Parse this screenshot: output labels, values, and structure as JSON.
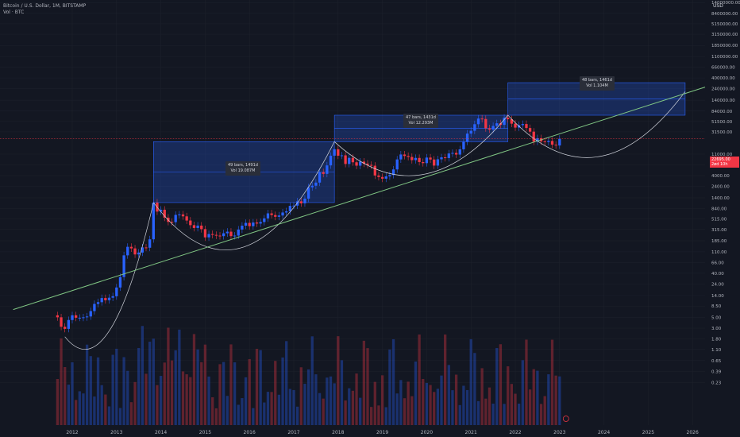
{
  "header": {
    "title": "Bitcoin / U.S. Dollar, 1M, BITSTAMP",
    "subtitle": "Vol · BTC",
    "currency": "USD"
  },
  "price_tag": {
    "value": "22695.00",
    "countdown": "2ød 10h"
  },
  "annotations": [
    {
      "bars": "49 bars, 1491d",
      "vol": "Vol 19.087M"
    },
    {
      "bars": "47 bars, 1431d",
      "vol": "Vol 12.293M"
    },
    {
      "bars": "48 bars, 1461d",
      "vol": "Vol 1.104M"
    }
  ],
  "colors": {
    "background": "#131722",
    "up": "#2962ff",
    "down": "#f23645",
    "trendline": "#81c784",
    "box": "#2962ff",
    "grid": "#1e222d",
    "text": "#b2b5be"
  },
  "chart_data": {
    "type": "candlestick",
    "scale": "log",
    "y_ticks": [
      "14000000.00",
      "8400000.00",
      "5150000.00",
      "3150000.00",
      "1850000.00",
      "1100000.00",
      "660000.00",
      "400000.00",
      "240000.00",
      "140000.00",
      "84000.00",
      "51500.00",
      "31500.00",
      "11000.00",
      "6600.00",
      "4000.00",
      "2400.00",
      "1400.00",
      "840.00",
      "515.00",
      "315.00",
      "185.00",
      "110.00",
      "66.00",
      "40.00",
      "24.00",
      "14.00",
      "8.50",
      "5.00",
      "3.00",
      "1.80",
      "1.10",
      "0.65",
      "0.39",
      "0.23"
    ],
    "x_ticks": [
      "2012",
      "2013",
      "2014",
      "2015",
      "2016",
      "2017",
      "2018",
      "2019",
      "2020",
      "2021",
      "2022",
      "2023",
      "2024",
      "2025",
      "2026"
    ],
    "closes": [
      {
        "date": "2011-09",
        "value": 5.0
      },
      {
        "date": "2011-10",
        "value": 3.2
      },
      {
        "date": "2011-11",
        "value": 2.9
      },
      {
        "date": "2011-12",
        "value": 4.4
      },
      {
        "date": "2012-01",
        "value": 5.5
      },
      {
        "date": "2012-02",
        "value": 4.9
      },
      {
        "date": "2012-03",
        "value": 4.9
      },
      {
        "date": "2012-04",
        "value": 5.0
      },
      {
        "date": "2012-05",
        "value": 5.2
      },
      {
        "date": "2012-06",
        "value": 6.7
      },
      {
        "date": "2012-07",
        "value": 9.4
      },
      {
        "date": "2012-08",
        "value": 10.2
      },
      {
        "date": "2012-09",
        "value": 12.4
      },
      {
        "date": "2012-10",
        "value": 11.2
      },
      {
        "date": "2012-11",
        "value": 12.6
      },
      {
        "date": "2012-12",
        "value": 13.5
      },
      {
        "date": "2013-01",
        "value": 20.4
      },
      {
        "date": "2013-02",
        "value": 33.4
      },
      {
        "date": "2013-03",
        "value": 93
      },
      {
        "date": "2013-04",
        "value": 139
      },
      {
        "date": "2013-05",
        "value": 129
      },
      {
        "date": "2013-06",
        "value": 97
      },
      {
        "date": "2013-07",
        "value": 106
      },
      {
        "date": "2013-08",
        "value": 135
      },
      {
        "date": "2013-09",
        "value": 133
      },
      {
        "date": "2013-10",
        "value": 198
      },
      {
        "date": "2013-11",
        "value": 1120
      },
      {
        "date": "2013-12",
        "value": 732
      },
      {
        "date": "2014-01",
        "value": 800
      },
      {
        "date": "2014-02",
        "value": 550
      },
      {
        "date": "2014-03",
        "value": 450
      },
      {
        "date": "2014-04",
        "value": 445
      },
      {
        "date": "2014-05",
        "value": 627
      },
      {
        "date": "2014-06",
        "value": 640
      },
      {
        "date": "2014-07",
        "value": 585
      },
      {
        "date": "2014-08",
        "value": 480
      },
      {
        "date": "2014-09",
        "value": 386
      },
      {
        "date": "2014-10",
        "value": 338
      },
      {
        "date": "2014-11",
        "value": 378
      },
      {
        "date": "2014-12",
        "value": 320
      },
      {
        "date": "2015-01",
        "value": 217
      },
      {
        "date": "2015-02",
        "value": 254
      },
      {
        "date": "2015-03",
        "value": 244
      },
      {
        "date": "2015-04",
        "value": 236
      },
      {
        "date": "2015-05",
        "value": 230
      },
      {
        "date": "2015-06",
        "value": 263
      },
      {
        "date": "2015-07",
        "value": 284
      },
      {
        "date": "2015-08",
        "value": 230
      },
      {
        "date": "2015-09",
        "value": 236
      },
      {
        "date": "2015-10",
        "value": 314
      },
      {
        "date": "2015-11",
        "value": 377
      },
      {
        "date": "2015-12",
        "value": 430
      },
      {
        "date": "2016-01",
        "value": 368
      },
      {
        "date": "2016-02",
        "value": 437
      },
      {
        "date": "2016-03",
        "value": 416
      },
      {
        "date": "2016-04",
        "value": 448
      },
      {
        "date": "2016-05",
        "value": 531
      },
      {
        "date": "2016-06",
        "value": 673
      },
      {
        "date": "2016-07",
        "value": 622
      },
      {
        "date": "2016-08",
        "value": 573
      },
      {
        "date": "2016-09",
        "value": 609
      },
      {
        "date": "2016-10",
        "value": 701
      },
      {
        "date": "2016-11",
        "value": 742
      },
      {
        "date": "2016-12",
        "value": 963
      },
      {
        "date": "2017-01",
        "value": 970
      },
      {
        "date": "2017-02",
        "value": 1189
      },
      {
        "date": "2017-03",
        "value": 1080
      },
      {
        "date": "2017-04",
        "value": 1348
      },
      {
        "date": "2017-05",
        "value": 2300
      },
      {
        "date": "2017-06",
        "value": 2480
      },
      {
        "date": "2017-07",
        "value": 2875
      },
      {
        "date": "2017-08",
        "value": 4700
      },
      {
        "date": "2017-09",
        "value": 4338
      },
      {
        "date": "2017-10",
        "value": 6468
      },
      {
        "date": "2017-11",
        "value": 10233
      },
      {
        "date": "2017-12",
        "value": 13850
      },
      {
        "date": "2018-01",
        "value": 10221
      },
      {
        "date": "2018-02",
        "value": 10397
      },
      {
        "date": "2018-03",
        "value": 6926
      },
      {
        "date": "2018-04",
        "value": 9240
      },
      {
        "date": "2018-05",
        "value": 7495
      },
      {
        "date": "2018-06",
        "value": 6390
      },
      {
        "date": "2018-07",
        "value": 7730
      },
      {
        "date": "2018-08",
        "value": 7037
      },
      {
        "date": "2018-09",
        "value": 6625
      },
      {
        "date": "2018-10",
        "value": 6371
      },
      {
        "date": "2018-11",
        "value": 4017
      },
      {
        "date": "2018-12",
        "value": 3742
      },
      {
        "date": "2019-01",
        "value": 3457
      },
      {
        "date": "2019-02",
        "value": 3854
      },
      {
        "date": "2019-03",
        "value": 4105
      },
      {
        "date": "2019-04",
        "value": 5350
      },
      {
        "date": "2019-05",
        "value": 8574
      },
      {
        "date": "2019-06",
        "value": 10817
      },
      {
        "date": "2019-07",
        "value": 10085
      },
      {
        "date": "2019-08",
        "value": 9630
      },
      {
        "date": "2019-09",
        "value": 8293
      },
      {
        "date": "2019-10",
        "value": 9199
      },
      {
        "date": "2019-11",
        "value": 7569
      },
      {
        "date": "2019-12",
        "value": 7193
      },
      {
        "date": "2020-01",
        "value": 9350
      },
      {
        "date": "2020-02",
        "value": 8543
      },
      {
        "date": "2020-03",
        "value": 6410
      },
      {
        "date": "2020-04",
        "value": 8629
      },
      {
        "date": "2020-05",
        "value": 9454
      },
      {
        "date": "2020-06",
        "value": 9135
      },
      {
        "date": "2020-07",
        "value": 11351
      },
      {
        "date": "2020-08",
        "value": 11655
      },
      {
        "date": "2020-09",
        "value": 10779
      },
      {
        "date": "2020-10",
        "value": 13804
      },
      {
        "date": "2020-11",
        "value": 19700
      },
      {
        "date": "2020-12",
        "value": 28990
      },
      {
        "date": "2021-01",
        "value": 33114
      },
      {
        "date": "2021-02",
        "value": 45137
      },
      {
        "date": "2021-03",
        "value": 58919
      },
      {
        "date": "2021-04",
        "value": 57750
      },
      {
        "date": "2021-05",
        "value": 37332
      },
      {
        "date": "2021-06",
        "value": 35041
      },
      {
        "date": "2021-07",
        "value": 41626
      },
      {
        "date": "2021-08",
        "value": 47166
      },
      {
        "date": "2021-09",
        "value": 43790
      },
      {
        "date": "2021-10",
        "value": 61318
      },
      {
        "date": "2021-11",
        "value": 57005
      },
      {
        "date": "2021-12",
        "value": 46306
      },
      {
        "date": "2022-01",
        "value": 38483
      },
      {
        "date": "2022-02",
        "value": 43193
      },
      {
        "date": "2022-03",
        "value": 45538
      },
      {
        "date": "2022-04",
        "value": 37714
      },
      {
        "date": "2022-05",
        "value": 31792
      },
      {
        "date": "2022-06",
        "value": 19784
      },
      {
        "date": "2022-07",
        "value": 23336
      },
      {
        "date": "2022-08",
        "value": 20050
      },
      {
        "date": "2022-09",
        "value": 19423
      },
      {
        "date": "2022-10",
        "value": 20495
      },
      {
        "date": "2022-11",
        "value": 17168
      },
      {
        "date": "2022-12",
        "value": 16548
      },
      {
        "date": "2023-01",
        "value": 22695
      }
    ]
  }
}
